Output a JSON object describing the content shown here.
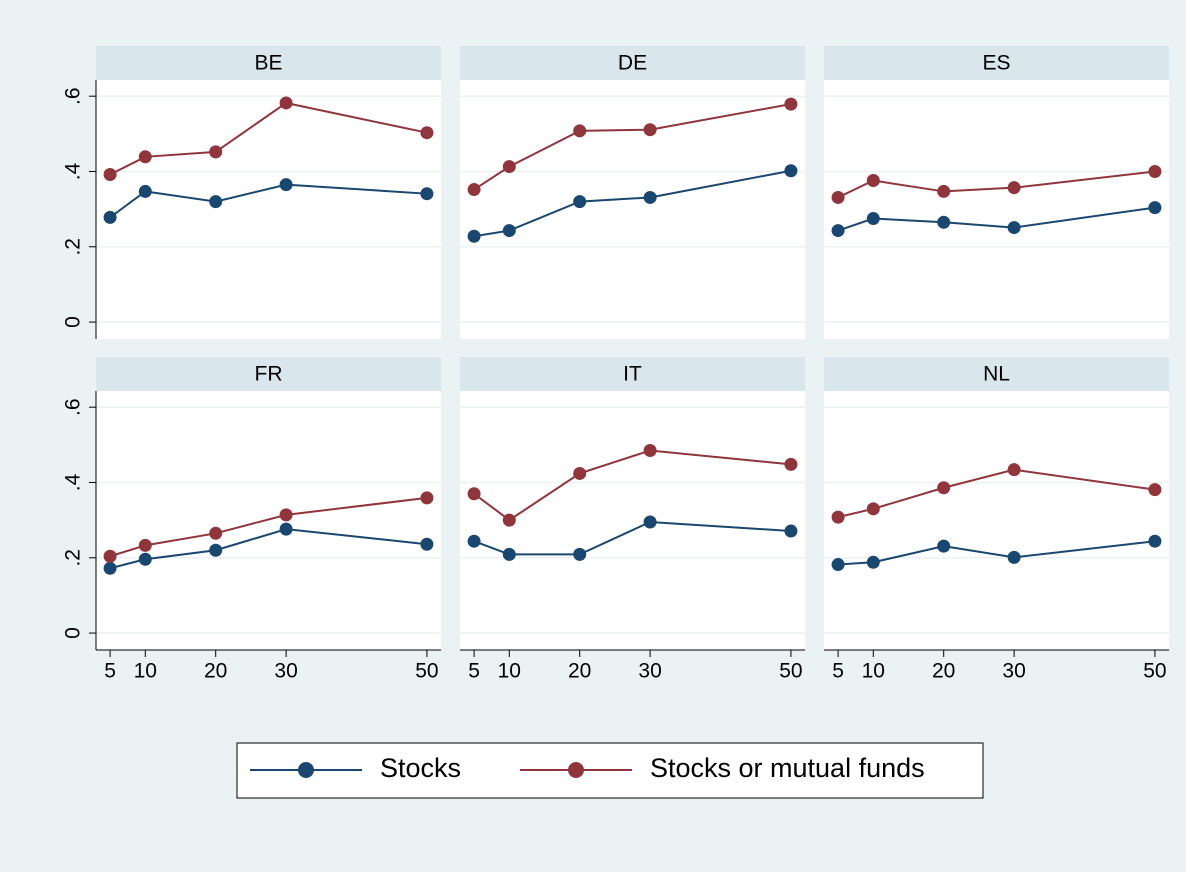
{
  "chart_data": {
    "type": "line",
    "x": [
      5,
      10,
      20,
      30,
      50
    ],
    "xlim": [
      3,
      52
    ],
    "xticks": [
      5,
      10,
      20,
      30,
      50
    ],
    "ylim": [
      -0.045,
      0.643
    ],
    "yticks": [
      {
        "value": 0,
        "label": "0"
      },
      {
        "value": 0.2,
        "label": ".2"
      },
      {
        "value": 0.4,
        "label": ".4"
      },
      {
        "value": 0.6,
        "label": ".6"
      }
    ],
    "grid": true,
    "legend": "bottom",
    "series": [
      {
        "name": "Stocks",
        "color": "#1a476f"
      },
      {
        "name": "Stocks or mutual funds",
        "color": "#90353b"
      }
    ],
    "panels": [
      {
        "title": "BE",
        "values": [
          [
            0.278,
            0.347,
            0.32,
            0.365,
            0.341
          ],
          [
            0.392,
            0.439,
            0.452,
            0.582,
            0.503
          ]
        ]
      },
      {
        "title": "DE",
        "values": [
          [
            0.228,
            0.243,
            0.32,
            0.331,
            0.402
          ],
          [
            0.352,
            0.413,
            0.508,
            0.511,
            0.579
          ]
        ]
      },
      {
        "title": "ES",
        "values": [
          [
            0.243,
            0.275,
            0.265,
            0.251,
            0.304
          ],
          [
            0.331,
            0.376,
            0.347,
            0.357,
            0.4
          ]
        ]
      },
      {
        "title": "FR",
        "values": [
          [
            0.172,
            0.196,
            0.22,
            0.276,
            0.236
          ],
          [
            0.204,
            0.233,
            0.265,
            0.314,
            0.359
          ]
        ]
      },
      {
        "title": "IT",
        "values": [
          [
            0.244,
            0.209,
            0.209,
            0.295,
            0.271
          ],
          [
            0.37,
            0.3,
            0.424,
            0.485,
            0.448
          ]
        ]
      },
      {
        "title": "NL",
        "values": [
          [
            0.182,
            0.188,
            0.231,
            0.201,
            0.244
          ],
          [
            0.308,
            0.33,
            0.386,
            0.434,
            0.381
          ]
        ]
      }
    ]
  }
}
